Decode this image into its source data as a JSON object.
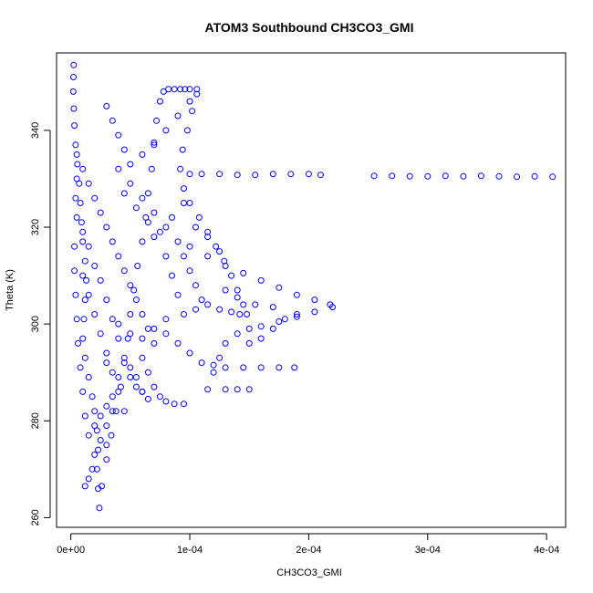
{
  "chart_data": {
    "type": "scatter",
    "title": "ATOM3 Southbound CH3CO3_GMI",
    "xlabel": "CH3CO3_GMI",
    "ylabel": "Theta (K)",
    "xlim": [
      -1.2e-05,
      0.000416
    ],
    "ylim": [
      258,
      356
    ],
    "xticks": [
      0,
      0.0001,
      0.0002,
      0.0003,
      0.0004
    ],
    "xtick_labels": [
      "0e+00",
      "1e-04",
      "2e-04",
      "3e-04",
      "4e-04"
    ],
    "yticks": [
      260,
      280,
      300,
      320,
      340
    ],
    "yticks_labels": [
      "260",
      "280",
      "300",
      "320",
      "340"
    ],
    "marker": "open-circle",
    "color": "#0000ff",
    "grid": false,
    "legend": "none",
    "series": [
      {
        "points": [
          [
            2.4e-06,
            353.5
          ],
          [
            2.2e-06,
            351.0
          ],
          [
            2e-06,
            348.0
          ],
          [
            2.5e-06,
            344.5
          ],
          [
            3e-06,
            341.0
          ],
          [
            4e-06,
            337.0
          ],
          [
            5.5e-06,
            333.0
          ],
          [
            7e-06,
            329.0
          ],
          [
            8e-06,
            325.0
          ],
          [
            9e-06,
            321.0
          ],
          [
            1e-05,
            317.0
          ],
          [
            1.2e-05,
            313.0
          ],
          [
            1.3e-05,
            309.0
          ],
          [
            1.2e-05,
            305.0
          ],
          [
            1.1e-05,
            301.0
          ],
          [
            1e-05,
            297.0
          ],
          [
            1.2e-05,
            293.0
          ],
          [
            1.5e-05,
            289.0
          ],
          [
            1.8e-05,
            285.0
          ],
          [
            2e-05,
            282.0
          ],
          [
            2.2e-05,
            278.0
          ],
          [
            2.3e-05,
            274.0
          ],
          [
            2.2e-05,
            270.0
          ],
          [
            2.3e-05,
            266.0
          ],
          [
            2.4e-05,
            262.0
          ],
          [
            2.6e-05,
            266.5
          ],
          [
            3e-05,
            272.0
          ],
          [
            3.4e-05,
            277.0
          ],
          [
            3.8e-05,
            282.0
          ],
          [
            4.2e-05,
            287.0
          ],
          [
            4.5e-05,
            292.0
          ],
          [
            4.8e-05,
            297.0
          ],
          [
            5e-05,
            302.0
          ],
          [
            5.3e-05,
            307.0
          ],
          [
            5.6e-05,
            312.0
          ],
          [
            6e-05,
            317.0
          ],
          [
            6.3e-05,
            322.0
          ],
          [
            6.5e-05,
            327.0
          ],
          [
            6.8e-05,
            332.0
          ],
          [
            7e-05,
            337.0
          ],
          [
            7.2e-05,
            342.0
          ],
          [
            7.5e-05,
            346.0
          ],
          [
            7.8e-05,
            348.0
          ],
          [
            8.2e-05,
            348.5
          ],
          [
            8.7e-05,
            348.5
          ],
          [
            9.2e-05,
            348.5
          ],
          [
            9.6e-05,
            348.5
          ],
          [
            0.0001,
            348.5
          ],
          [
            0.000106,
            348.5
          ],
          [
            0.000106,
            347.5
          ],
          [
            0.000102,
            344.0
          ],
          [
            9.8e-05,
            340.0
          ],
          [
            9.4e-05,
            336.0
          ],
          [
            9.2e-05,
            332.0
          ],
          [
            9.5e-05,
            328.0
          ],
          [
            0.0001,
            325.0
          ],
          [
            0.000108,
            322.0
          ],
          [
            0.000115,
            319.0
          ],
          [
            0.000122,
            316.0
          ],
          [
            0.000129,
            313.0
          ],
          [
            0.000135,
            310.0
          ],
          [
            0.00014,
            307.0
          ],
          [
            0.000145,
            304.0
          ],
          [
            0.000148,
            302.0
          ],
          [
            0.0001,
            331.0
          ],
          [
            0.00011,
            331.0
          ],
          [
            0.000125,
            331.0
          ],
          [
            0.00014,
            330.8
          ],
          [
            0.000155,
            330.8
          ],
          [
            0.00017,
            331.0
          ],
          [
            0.000185,
            331.0
          ],
          [
            0.0002,
            331.0
          ],
          [
            0.00021,
            330.8
          ],
          [
            0.000255,
            330.6
          ],
          [
            0.00027,
            330.6
          ],
          [
            0.000285,
            330.5
          ],
          [
            0.0003,
            330.5
          ],
          [
            0.000315,
            330.6
          ],
          [
            0.00033,
            330.5
          ],
          [
            0.000345,
            330.6
          ],
          [
            0.00036,
            330.5
          ],
          [
            0.000375,
            330.4
          ],
          [
            0.00039,
            330.5
          ],
          [
            0.000405,
            330.4
          ],
          [
            0.0001,
            316.0
          ],
          [
            0.000115,
            314.0
          ],
          [
            0.00013,
            312.0
          ],
          [
            0.000145,
            310.5
          ],
          [
            0.00016,
            309.0
          ],
          [
            0.000175,
            307.5
          ],
          [
            0.00019,
            306.0
          ],
          [
            0.000205,
            305.0
          ],
          [
            0.000218,
            304.0
          ],
          [
            0.00022,
            303.5
          ],
          [
            0.000205,
            302.5
          ],
          [
            0.00019,
            301.5
          ],
          [
            0.000175,
            300.5
          ],
          [
            0.00016,
            299.5
          ],
          [
            0.00015,
            299.0
          ],
          [
            0.00014,
            298.0
          ],
          [
            0.00013,
            296.0
          ],
          [
            0.000125,
            293.0
          ],
          [
            0.00012,
            290.0
          ],
          [
            0.000115,
            286.5
          ],
          [
            0.00013,
            286.5
          ],
          [
            0.00014,
            286.5
          ],
          [
            0.00015,
            286.5
          ],
          [
            0.00013,
            291.0
          ],
          [
            0.000145,
            291.0
          ],
          [
            0.00016,
            291.0
          ],
          [
            0.000175,
            291.0
          ],
          [
            0.000188,
            291.0
          ],
          [
            8e-05,
            298.0
          ],
          [
            9e-05,
            296.0
          ],
          [
            0.0001,
            294.0
          ],
          [
            0.00011,
            292.0
          ],
          [
            0.00012,
            291.5
          ],
          [
            6e-05,
            293.0
          ],
          [
            6.5e-05,
            290.0
          ],
          [
            7e-05,
            287.0
          ],
          [
            7.5e-05,
            285.0
          ],
          [
            8e-05,
            284.0
          ],
          [
            8.7e-05,
            283.5
          ],
          [
            9.5e-05,
            283.5
          ],
          [
            5e-05,
            291.0
          ],
          [
            5.5e-05,
            289.0
          ],
          [
            6e-05,
            286.0
          ],
          [
            6.5e-05,
            284.5
          ],
          [
            4e-05,
            332.0
          ],
          [
            5e-05,
            329.0
          ],
          [
            6e-05,
            326.0
          ],
          [
            7e-05,
            323.0
          ],
          [
            8e-05,
            320.0
          ],
          [
            9e-05,
            317.0
          ],
          [
            9.5e-05,
            314.0
          ],
          [
            0.0001,
            311.0
          ],
          [
            0.000105,
            308.0
          ],
          [
            0.00011,
            305.0
          ],
          [
            3e-05,
            345.0
          ],
          [
            3.5e-05,
            342.0
          ],
          [
            4e-05,
            339.0
          ],
          [
            4.5e-05,
            336.0
          ],
          [
            5e-05,
            333.0
          ],
          [
            6e-05,
            335.0
          ],
          [
            7e-05,
            337.5
          ],
          [
            8e-05,
            340.0
          ],
          [
            9e-05,
            343.0
          ],
          [
            0.0001,
            346.0
          ],
          [
            5e-06,
            335.0
          ],
          [
            1e-05,
            332.0
          ],
          [
            1.5e-05,
            329.0
          ],
          [
            2e-05,
            326.0
          ],
          [
            2.5e-05,
            323.0
          ],
          [
            3e-05,
            320.0
          ],
          [
            3.5e-05,
            317.0
          ],
          [
            4e-05,
            314.0
          ],
          [
            4.5e-05,
            311.0
          ],
          [
            5e-05,
            308.0
          ],
          [
            5.5e-05,
            305.0
          ],
          [
            6e-05,
            302.0
          ],
          [
            6.5e-05,
            299.0
          ],
          [
            7e-05,
            296.0
          ],
          [
            1e-05,
            310.0
          ],
          [
            1.5e-05,
            306.0
          ],
          [
            2e-05,
            302.0
          ],
          [
            2.5e-05,
            298.0
          ],
          [
            3e-05,
            294.0
          ],
          [
            3.5e-05,
            290.0
          ],
          [
            4e-05,
            286.0
          ],
          [
            3.5e-05,
            282.0
          ],
          [
            3e-05,
            279.0
          ],
          [
            2.5e-05,
            276.0
          ],
          [
            1.5e-05,
            268.0
          ],
          [
            1.2e-05,
            266.5
          ],
          [
            1.8e-05,
            270.0
          ],
          [
            2e-05,
            273.0
          ],
          [
            5e-06,
            322.0
          ],
          [
            1e-05,
            319.0
          ],
          [
            1.5e-05,
            316.0
          ],
          [
            2e-05,
            312.0
          ],
          [
            2.5e-05,
            309.0
          ],
          [
            3e-05,
            305.0
          ],
          [
            3.5e-05,
            301.0
          ],
          [
            4e-05,
            297.0
          ],
          [
            4.5e-05,
            293.0
          ],
          [
            5e-05,
            289.0
          ],
          [
            5.5e-05,
            287.0
          ],
          [
            6e-05,
            286.0
          ],
          [
            7e-05,
            318.0
          ],
          [
            8e-05,
            314.0
          ],
          [
            8.5e-05,
            310.0
          ],
          [
            9e-05,
            306.0
          ],
          [
            9.5e-05,
            302.0
          ],
          [
            0.000105,
            303.0
          ],
          [
            0.000115,
            304.0
          ],
          [
            0.000125,
            303.0
          ],
          [
            0.000135,
            302.5
          ],
          [
            0.000142,
            302.0
          ],
          [
            4e-05,
            300.0
          ],
          [
            5e-05,
            298.0
          ],
          [
            6e-05,
            297.0
          ],
          [
            7e-05,
            299.0
          ],
          [
            8e-05,
            301.0
          ],
          [
            2.5e-05,
            281.0
          ],
          [
            3e-05,
            283.0
          ],
          [
            3.5e-05,
            285.0
          ],
          [
            2e-05,
            279.0
          ],
          [
            1.5e-05,
            277.0
          ],
          [
            1.2e-05,
            281.0
          ],
          [
            1e-05,
            286.0
          ],
          [
            8e-06,
            291.0
          ],
          [
            6e-06,
            296.0
          ],
          [
            5e-06,
            301.0
          ],
          [
            4e-06,
            306.0
          ],
          [
            3e-06,
            311.0
          ],
          [
            3e-06,
            316.0
          ],
          [
            4e-06,
            326.0
          ],
          [
            5e-06,
            330.0
          ],
          [
            4.5e-05,
            327.0
          ],
          [
            5.5e-05,
            324.0
          ],
          [
            6.5e-05,
            321.0
          ],
          [
            7.5e-05,
            319.0
          ],
          [
            8.5e-05,
            322.0
          ],
          [
            9.5e-05,
            325.0
          ],
          [
            0.000105,
            320.0
          ],
          [
            0.000115,
            318.0
          ],
          [
            0.000125,
            315.0
          ],
          [
            3e-05,
            292.0
          ],
          [
            4e-05,
            289.0
          ],
          [
            4.5e-05,
            282.0
          ],
          [
            3e-05,
            275.0
          ],
          [
            0.00015,
            296.0
          ],
          [
            0.00016,
            297.0
          ],
          [
            0.00017,
            299.0
          ],
          [
            0.00018,
            301.0
          ],
          [
            0.00019,
            302.0
          ],
          [
            0.00017,
            303.5
          ],
          [
            0.000155,
            304.0
          ],
          [
            0.00014,
            305.5
          ],
          [
            0.00013,
            307.0
          ]
        ]
      }
    ]
  }
}
